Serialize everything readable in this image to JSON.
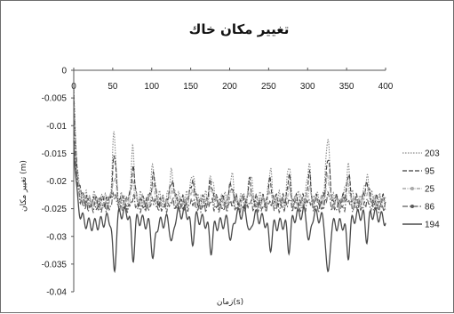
{
  "chart_data": {
    "type": "line",
    "title": "تغيير مكان خاك",
    "xlabel": "زمان(s)",
    "ylabel": "تغيير مكان (m)",
    "xlim": [
      0,
      400
    ],
    "ylim": [
      -0.04,
      0
    ],
    "x_ticks": [
      "0",
      "50",
      "100",
      "150",
      "200",
      "250",
      "300",
      "350",
      "400"
    ],
    "y_ticks": [
      "0",
      "-0.005",
      "-0.01",
      "-0.015",
      "-0.02",
      "-0.025",
      "-0.03",
      "-0.035",
      "-0.04"
    ],
    "x_tick_values": [
      0,
      50,
      100,
      150,
      200,
      250,
      300,
      350,
      400
    ],
    "y_tick_values": [
      0,
      -0.005,
      -0.01,
      -0.015,
      -0.02,
      -0.025,
      -0.03,
      -0.035,
      -0.04
    ],
    "grid": false,
    "legend_position": "right",
    "peaks": [
      {
        "x": 52,
        "w": 3.2,
        "a": 1.0
      },
      {
        "x": 76,
        "w": 3.0,
        "a": 0.75
      },
      {
        "x": 102,
        "w": 3.0,
        "a": 0.6
      },
      {
        "x": 126,
        "w": 3.0,
        "a": 0.5
      },
      {
        "x": 152,
        "w": 3.0,
        "a": 0.5
      },
      {
        "x": 176,
        "w": 3.0,
        "a": 0.45
      },
      {
        "x": 202,
        "w": 3.0,
        "a": 0.4
      },
      {
        "x": 226,
        "w": 3.0,
        "a": 0.4
      },
      {
        "x": 252,
        "w": 3.0,
        "a": 0.42
      },
      {
        "x": 276,
        "w": 3.0,
        "a": 0.5
      },
      {
        "x": 302,
        "w": 3.0,
        "a": 0.55
      },
      {
        "x": 326,
        "w": 3.2,
        "a": 1.0
      },
      {
        "x": 352,
        "w": 3.0,
        "a": 0.6
      },
      {
        "x": 376,
        "w": 3.0,
        "a": 0.45
      }
    ],
    "series": [
      {
        "name": "203",
        "color": "#8a8a8a",
        "dash": "1.5,1.5",
        "width": 1.1,
        "base": -0.0235,
        "osc": 0.0018,
        "peak_amp": 0.0115,
        "freq": 0.9,
        "start": -0.003
      },
      {
        "name": "95",
        "color": "#3f3f3f",
        "dash": "5,2",
        "width": 1.1,
        "base": -0.0235,
        "osc": 0.0012,
        "peak_amp": 0.0078,
        "freq": 1.1,
        "start": -0.004
      },
      {
        "name": "25",
        "color": "#a9a9a9",
        "dash": "4,1.5,1,1.5",
        "width": 1.2,
        "base": -0.0237,
        "osc": 0.0012,
        "peak_amp": 0.0045,
        "freq": 1.3,
        "start": -0.006
      },
      {
        "name": "86",
        "color": "#5a5a5a",
        "dash": "6,2,1.5,2",
        "width": 1.1,
        "base": -0.0248,
        "osc": 0.0009,
        "peak_amp": 0.0025,
        "freq": 1.5,
        "start": -0.008
      },
      {
        "name": "194",
        "color": "#4a4a4a",
        "dash": "",
        "width": 1.3,
        "base": -0.0268,
        "osc": 0.0022,
        "peak_amp": -0.01,
        "freq": 0.45,
        "start": -0.012
      }
    ]
  }
}
